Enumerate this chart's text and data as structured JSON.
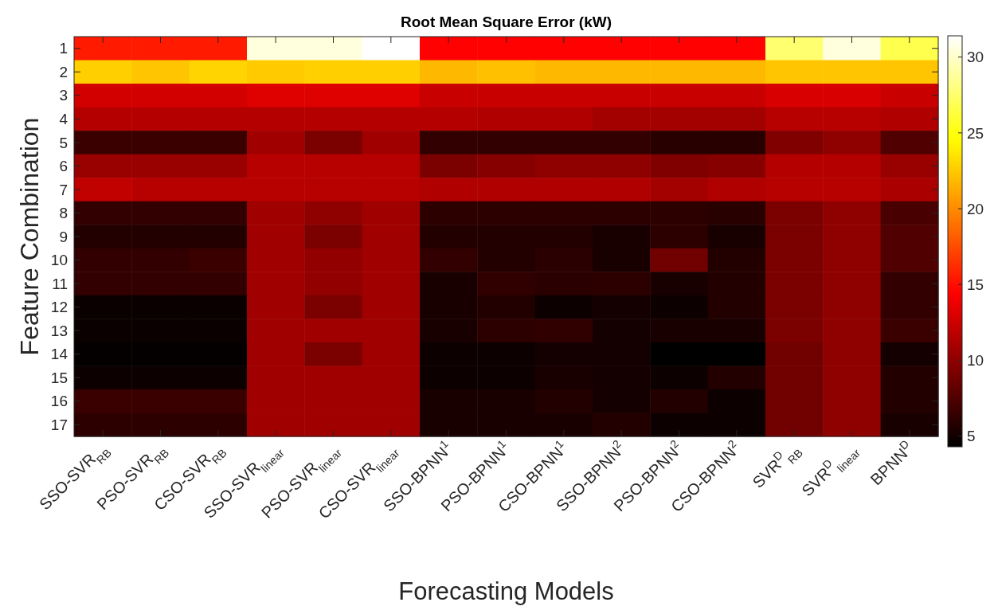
{
  "chart_data": {
    "type": "heatmap",
    "title": "Root Mean Square Error (kW)",
    "xlabel": "Forecasting Models",
    "ylabel": "Feature Combination",
    "categories": [
      "SSO-SVR$_{RB}$",
      "PSO-SVR$_{RB}$",
      "CSO-SVR$_{RB}$",
      "SSO-SVR$_{linear}$",
      "PSO-SVR$_{linear}$",
      "CSO-SVR$_{linear}$",
      "SSO-BPNN$^{1}$",
      "PSO-BPNN$^{1}$",
      "CSO-BPNN$^{1}$",
      "SSO-BPNN$^{2}$",
      "PSO-BPNN$^{2}$",
      "CSO-BPNN$^{2}$",
      "SVR$^{D}$$_{RB}$",
      "SVR$^{D}$$_{linear}$",
      "BPNN$^{D}$"
    ],
    "y_categories": [
      "1",
      "2",
      "3",
      "4",
      "5",
      "6",
      "7",
      "8",
      "9",
      "10",
      "11",
      "12",
      "13",
      "14",
      "15",
      "16",
      "17"
    ],
    "cells": [
      [
        15.5,
        15.5,
        15.5,
        30.5,
        30.5,
        31.4,
        14.5,
        14.5,
        14.5,
        14.5,
        14.5,
        14.5,
        27.6,
        30.5,
        26.7
      ],
      [
        22.7,
        22.3,
        22.9,
        22.5,
        22.7,
        22.7,
        21.8,
        22.1,
        21.8,
        21.8,
        21.8,
        21.8,
        22.3,
        22.3,
        22.3
      ],
      [
        12.7,
        12.7,
        12.7,
        13.2,
        13.2,
        13.2,
        12.3,
        12.3,
        12.3,
        12.3,
        12.3,
        12.3,
        12.9,
        12.9,
        12.3
      ],
      [
        11.5,
        11.5,
        11.5,
        11.5,
        11.5,
        11.5,
        11.5,
        11.3,
        11.3,
        10.8,
        10.8,
        10.8,
        11.6,
        11.6,
        11.3
      ],
      [
        6.6,
        6.6,
        6.6,
        10.7,
        9.2,
        10.7,
        6.3,
        6.3,
        6.3,
        6.3,
        5.9,
        5.9,
        9.4,
        10.0,
        7.5
      ],
      [
        10.4,
        10.4,
        10.4,
        11.6,
        11.6,
        11.6,
        9.2,
        9.7,
        10.0,
        10.0,
        9.4,
        9.7,
        11.5,
        11.5,
        10.4
      ],
      [
        12.0,
        11.6,
        11.6,
        11.6,
        11.6,
        11.6,
        11.3,
        11.3,
        11.3,
        11.3,
        10.8,
        11.3,
        11.6,
        11.6,
        11.1
      ],
      [
        6.3,
        6.3,
        6.3,
        10.7,
        10.0,
        10.7,
        6.1,
        6.1,
        6.1,
        6.1,
        6.1,
        5.9,
        9.2,
        10.0,
        7.2
      ],
      [
        5.7,
        5.7,
        5.7,
        10.7,
        9.2,
        10.7,
        5.7,
        5.7,
        5.7,
        5.3,
        6.1,
        5.3,
        9.2,
        10.0,
        7.5
      ],
      [
        6.3,
        6.3,
        6.6,
        10.7,
        10.1,
        10.7,
        6.3,
        5.7,
        6.0,
        5.3,
        8.8,
        5.7,
        9.2,
        10.0,
        7.5
      ],
      [
        6.3,
        6.3,
        6.3,
        10.7,
        10.1,
        10.7,
        5.3,
        6.2,
        6.0,
        6.1,
        5.3,
        5.7,
        9.2,
        10.0,
        6.3
      ],
      [
        4.7,
        4.7,
        4.7,
        10.7,
        9.2,
        10.7,
        5.3,
        5.7,
        4.8,
        5.1,
        4.8,
        5.7,
        9.2,
        10.0,
        6.3
      ],
      [
        4.7,
        4.7,
        4.7,
        10.7,
        10.7,
        10.7,
        5.3,
        6.1,
        6.2,
        5.1,
        5.3,
        5.3,
        9.2,
        10.0,
        6.6
      ],
      [
        4.5,
        4.5,
        4.5,
        10.7,
        9.2,
        10.7,
        4.8,
        4.8,
        5.1,
        5.1,
        4.3,
        4.3,
        8.8,
        10.0,
        5.1
      ],
      [
        4.8,
        4.8,
        4.8,
        10.7,
        10.7,
        10.7,
        4.8,
        4.8,
        5.3,
        5.1,
        4.8,
        5.7,
        8.8,
        10.0,
        5.7
      ],
      [
        6.6,
        6.6,
        6.6,
        10.7,
        10.7,
        10.7,
        5.3,
        5.3,
        5.7,
        5.1,
        5.7,
        4.8,
        8.8,
        10.0,
        5.7
      ],
      [
        6.1,
        6.1,
        6.1,
        10.7,
        10.7,
        10.7,
        5.3,
        5.3,
        5.3,
        5.7,
        4.8,
        4.8,
        8.8,
        10.0,
        5.3
      ]
    ],
    "clim": [
      4.3,
      31.4
    ],
    "cticks": [
      5,
      10,
      15,
      20,
      25,
      30
    ]
  }
}
